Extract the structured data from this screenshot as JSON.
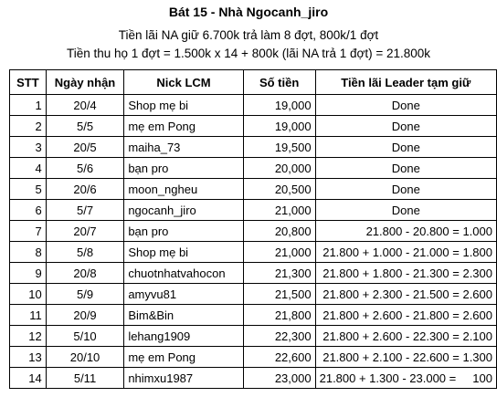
{
  "heading": {
    "title": "Bát 15 - Nhà Ngocanh_jiro",
    "line1": "Tiền lãi NA giữ 6.700k trả làm 8 đợt, 800k/1 đợt",
    "line2": "Tiền thu họ 1 đợt = 1.500k x 14 + 800k (lãi NA trả 1 đợt) = 21.800k"
  },
  "table": {
    "headers": [
      "STT",
      "Ngày nhận",
      "Nick LCM",
      "Số tiền",
      "Tiền lãi Leader tạm giữ"
    ],
    "rows": [
      {
        "stt": "1",
        "date": "20/4",
        "nick": "Shop mẹ bi",
        "amount": "19,000",
        "note": "Done"
      },
      {
        "stt": "2",
        "date": "5/5",
        "nick": "mẹ em Pong",
        "amount": "19,000",
        "note": "Done"
      },
      {
        "stt": "3",
        "date": "20/5",
        "nick": "maiha_73",
        "amount": "19,500",
        "note": "Done"
      },
      {
        "stt": "4",
        "date": "5/6",
        "nick": "bạn pro",
        "amount": "20,000",
        "note": "Done"
      },
      {
        "stt": "5",
        "date": "20/6",
        "nick": "moon_ngheu",
        "amount": "20,500",
        "note": "Done"
      },
      {
        "stt": "6",
        "date": "5/7",
        "nick": "ngocanh_jiro",
        "amount": "21,000",
        "note": "Done"
      },
      {
        "stt": "7",
        "date": "20/7",
        "nick": "bạn pro",
        "amount": "20,800",
        "note": "21.800 - 20.800 = 1.000"
      },
      {
        "stt": "8",
        "date": "5/8",
        "nick": "Shop mẹ bi",
        "amount": "21,000",
        "note": "21.800 + 1.000 - 21.000 = 1.800"
      },
      {
        "stt": "9",
        "date": "20/8",
        "nick": "chuotnhatvahocon",
        "amount": "21,300",
        "note": "21.800 + 1.800 - 21.300 = 2.300"
      },
      {
        "stt": "10",
        "date": "5/9",
        "nick": "amyvu81",
        "amount": "21,500",
        "note": "21.800 + 2.300 - 21.500 = 2.600"
      },
      {
        "stt": "11",
        "date": "20/9",
        "nick": "Bim&Bin",
        "amount": "21,800",
        "note": "21.800 + 2.600 - 21.800 = 2.600"
      },
      {
        "stt": "12",
        "date": "5/10",
        "nick": "lehang1909",
        "amount": "22,300",
        "note": "21.800 + 2.600 - 22.300 = 2.100"
      },
      {
        "stt": "13",
        "date": "20/10",
        "nick": "mẹ em Pong",
        "amount": "22,600",
        "note": "21.800 + 2.100 - 22.600 = 1.300"
      },
      {
        "stt": "14",
        "date": "5/11",
        "nick": "nhimxu1987",
        "amount": "23,000",
        "note": "21.800 + 1.300 - 23.000 =     100"
      }
    ]
  }
}
